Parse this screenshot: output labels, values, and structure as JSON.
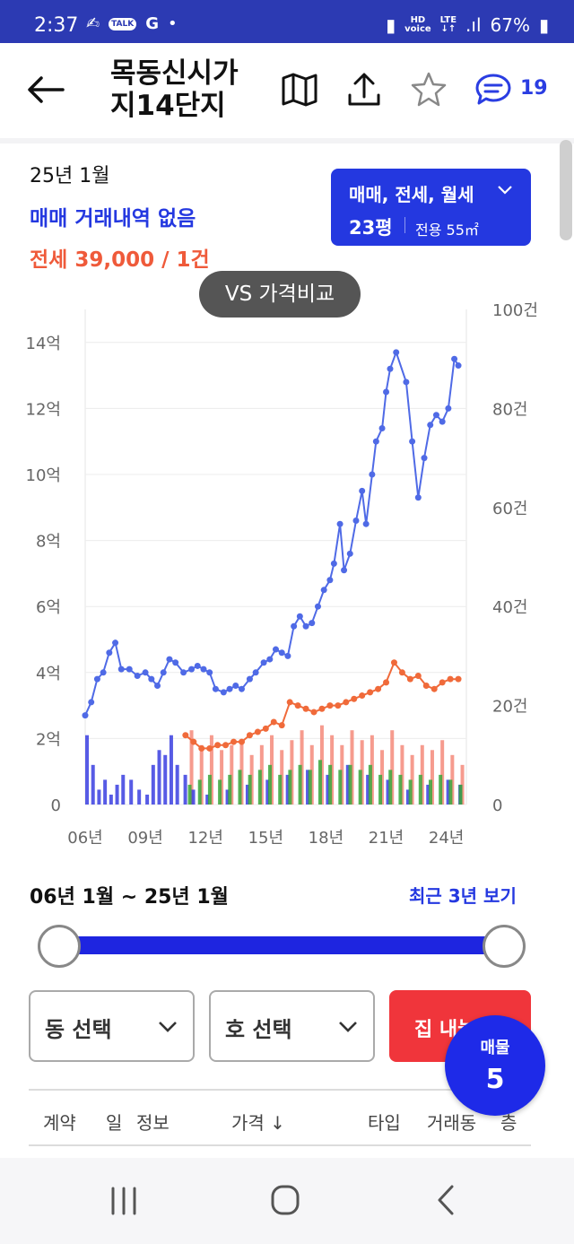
{
  "status_bar": {
    "time": "2:37",
    "talk": "TALK",
    "g": "G",
    "dot": "•",
    "hd": "HD",
    "voice": "voice",
    "lte": "LTE",
    "lte_arrows": "↓↑",
    "signal": ".ıl",
    "battery": "67%"
  },
  "header": {
    "title": "목동신시가지14단지",
    "chat_count": "19"
  },
  "summary": {
    "period": "25년 1월",
    "sale_status": "매매 거래내역 없음",
    "jeonse": "전세 39,000 / 1건"
  },
  "type_select": {
    "label": "매매, 전세, 월세",
    "area": "23평",
    "exclusive": "전용 55㎡"
  },
  "vs_button": "VS 가격비교",
  "chart_data": {
    "type": "line",
    "x_ticks": [
      "06년",
      "09년",
      "12년",
      "15년",
      "18년",
      "21년",
      "24년"
    ],
    "y_left_ticks": [
      "0",
      "2억",
      "4억",
      "6억",
      "8억",
      "10억",
      "12억",
      "14억"
    ],
    "y_left_range": [
      0,
      15
    ],
    "y_right_ticks": [
      "0",
      "20건",
      "40건",
      "60건",
      "80건",
      "100건"
    ],
    "y_right_range": [
      0,
      100
    ],
    "x_range": [
      2006,
      2025
    ],
    "grid": true,
    "sale_price": [
      [
        2006.0,
        2.7
      ],
      [
        2006.3,
        3.1
      ],
      [
        2006.6,
        3.8
      ],
      [
        2006.9,
        4.0
      ],
      [
        2007.2,
        4.6
      ],
      [
        2007.5,
        4.9
      ],
      [
        2007.8,
        4.1
      ],
      [
        2008.2,
        4.1
      ],
      [
        2008.6,
        3.9
      ],
      [
        2009.0,
        4.0
      ],
      [
        2009.3,
        3.8
      ],
      [
        2009.6,
        3.6
      ],
      [
        2009.9,
        4.0
      ],
      [
        2010.2,
        4.4
      ],
      [
        2010.5,
        4.3
      ],
      [
        2010.9,
        4.0
      ],
      [
        2011.3,
        4.1
      ],
      [
        2011.6,
        4.2
      ],
      [
        2011.9,
        4.1
      ],
      [
        2012.2,
        4.0
      ],
      [
        2012.5,
        3.5
      ],
      [
        2012.9,
        3.4
      ],
      [
        2013.2,
        3.5
      ],
      [
        2013.5,
        3.6
      ],
      [
        2013.8,
        3.5
      ],
      [
        2014.2,
        3.8
      ],
      [
        2014.5,
        4.0
      ],
      [
        2014.9,
        4.3
      ],
      [
        2015.2,
        4.4
      ],
      [
        2015.5,
        4.7
      ],
      [
        2015.8,
        4.6
      ],
      [
        2016.1,
        4.5
      ],
      [
        2016.4,
        5.4
      ],
      [
        2016.7,
        5.7
      ],
      [
        2017.0,
        5.4
      ],
      [
        2017.3,
        5.5
      ],
      [
        2017.6,
        6.0
      ],
      [
        2017.9,
        6.5
      ],
      [
        2018.2,
        6.8
      ],
      [
        2018.4,
        7.3
      ],
      [
        2018.7,
        8.5
      ],
      [
        2018.9,
        7.1
      ],
      [
        2019.2,
        7.6
      ],
      [
        2019.5,
        8.6
      ],
      [
        2019.8,
        9.5
      ],
      [
        2020.0,
        8.5
      ],
      [
        2020.3,
        10.0
      ],
      [
        2020.5,
        11.0
      ],
      [
        2020.8,
        11.4
      ],
      [
        2021.0,
        12.5
      ],
      [
        2021.2,
        13.2
      ],
      [
        2021.5,
        13.7
      ],
      [
        2022.0,
        12.8
      ],
      [
        2022.3,
        11.0
      ],
      [
        2022.6,
        9.3
      ],
      [
        2022.9,
        10.5
      ],
      [
        2023.2,
        11.5
      ],
      [
        2023.5,
        11.8
      ],
      [
        2023.8,
        11.6
      ],
      [
        2024.1,
        12.0
      ],
      [
        2024.4,
        13.5
      ],
      [
        2024.6,
        13.3
      ]
    ],
    "jeonse_price": [
      [
        2011.0,
        2.1
      ],
      [
        2011.4,
        1.9
      ],
      [
        2011.8,
        1.7
      ],
      [
        2012.2,
        1.7
      ],
      [
        2012.6,
        1.8
      ],
      [
        2013.0,
        1.8
      ],
      [
        2013.4,
        1.9
      ],
      [
        2013.8,
        1.9
      ],
      [
        2014.2,
        2.1
      ],
      [
        2014.6,
        2.2
      ],
      [
        2015.0,
        2.3
      ],
      [
        2015.4,
        2.5
      ],
      [
        2015.8,
        2.4
      ],
      [
        2016.2,
        3.1
      ],
      [
        2016.6,
        3.0
      ],
      [
        2017.0,
        2.9
      ],
      [
        2017.4,
        2.8
      ],
      [
        2017.8,
        2.9
      ],
      [
        2018.2,
        3.0
      ],
      [
        2018.6,
        3.0
      ],
      [
        2019.0,
        3.1
      ],
      [
        2019.4,
        3.2
      ],
      [
        2019.8,
        3.3
      ],
      [
        2020.2,
        3.4
      ],
      [
        2020.6,
        3.5
      ],
      [
        2021.0,
        3.7
      ],
      [
        2021.4,
        4.3
      ],
      [
        2021.8,
        4.0
      ],
      [
        2022.2,
        3.8
      ],
      [
        2022.6,
        3.9
      ],
      [
        2023.0,
        3.6
      ],
      [
        2023.4,
        3.5
      ],
      [
        2023.8,
        3.7
      ],
      [
        2024.2,
        3.8
      ],
      [
        2024.6,
        3.8
      ]
    ],
    "volume_sale": [
      [
        2006.0,
        14
      ],
      [
        2006.3,
        8
      ],
      [
        2006.6,
        3
      ],
      [
        2006.9,
        5
      ],
      [
        2007.2,
        2
      ],
      [
        2007.5,
        4
      ],
      [
        2007.8,
        6
      ],
      [
        2008.2,
        5
      ],
      [
        2008.6,
        3
      ],
      [
        2009.0,
        2
      ],
      [
        2009.3,
        8
      ],
      [
        2009.6,
        11
      ],
      [
        2009.9,
        10
      ],
      [
        2010.2,
        14
      ],
      [
        2010.5,
        8
      ],
      [
        2010.9,
        6
      ],
      [
        2011.3,
        3
      ],
      [
        2012.0,
        2
      ],
      [
        2013.0,
        3
      ],
      [
        2014.0,
        4
      ],
      [
        2015.0,
        5
      ],
      [
        2016.0,
        6
      ],
      [
        2017.0,
        7
      ],
      [
        2018.0,
        6
      ],
      [
        2019.0,
        8
      ],
      [
        2020.0,
        6
      ],
      [
        2021.0,
        5
      ],
      [
        2022.0,
        3
      ],
      [
        2023.0,
        4
      ],
      [
        2024.0,
        5
      ],
      [
        2024.6,
        4
      ]
    ],
    "volume_jeonse": [
      [
        2011.3,
        15
      ],
      [
        2011.8,
        12
      ],
      [
        2012.3,
        14
      ],
      [
        2012.8,
        11
      ],
      [
        2013.3,
        12
      ],
      [
        2013.8,
        13
      ],
      [
        2014.3,
        10
      ],
      [
        2014.8,
        12
      ],
      [
        2015.3,
        14
      ],
      [
        2015.8,
        11
      ],
      [
        2016.3,
        13
      ],
      [
        2016.8,
        15
      ],
      [
        2017.3,
        12
      ],
      [
        2017.8,
        16
      ],
      [
        2018.3,
        14
      ],
      [
        2018.8,
        12
      ],
      [
        2019.3,
        15
      ],
      [
        2019.8,
        13
      ],
      [
        2020.3,
        14
      ],
      [
        2020.8,
        11
      ],
      [
        2021.3,
        15
      ],
      [
        2021.8,
        12
      ],
      [
        2022.3,
        10
      ],
      [
        2022.8,
        12
      ],
      [
        2023.3,
        11
      ],
      [
        2023.8,
        13
      ],
      [
        2024.3,
        10
      ],
      [
        2024.8,
        8
      ]
    ],
    "volume_monthly": [
      [
        2011.3,
        4
      ],
      [
        2011.8,
        5
      ],
      [
        2012.3,
        6
      ],
      [
        2012.8,
        5
      ],
      [
        2013.3,
        6
      ],
      [
        2013.8,
        7
      ],
      [
        2014.3,
        6
      ],
      [
        2014.8,
        7
      ],
      [
        2015.3,
        8
      ],
      [
        2015.8,
        6
      ],
      [
        2016.3,
        7
      ],
      [
        2016.8,
        8
      ],
      [
        2017.3,
        7
      ],
      [
        2017.8,
        9
      ],
      [
        2018.3,
        8
      ],
      [
        2018.8,
        7
      ],
      [
        2019.3,
        8
      ],
      [
        2019.8,
        7
      ],
      [
        2020.3,
        8
      ],
      [
        2020.8,
        6
      ],
      [
        2021.3,
        7
      ],
      [
        2021.8,
        6
      ],
      [
        2022.3,
        5
      ],
      [
        2022.8,
        6
      ],
      [
        2023.3,
        5
      ],
      [
        2023.8,
        6
      ],
      [
        2024.3,
        5
      ],
      [
        2024.8,
        4
      ]
    ],
    "colors": {
      "sale": "#4f6ae6",
      "jeonse": "#f06a3a",
      "sale_bar": "#3a3ee0",
      "jeonse_bar": "#f58a7a",
      "monthly_bar": "#3aa63a"
    }
  },
  "range": {
    "text": "06년 1월 ~ 25년 1월",
    "recent3": "최근 3년 보기"
  },
  "filters": {
    "dong": "동 선택",
    "ho": "호 선택",
    "list_btn": "집 내놓기"
  },
  "fab": {
    "label": "매물",
    "count": "5"
  },
  "table_header": [
    "계약",
    "일",
    "정보",
    "가격 ↓",
    "타입",
    "거래동",
    "층"
  ]
}
